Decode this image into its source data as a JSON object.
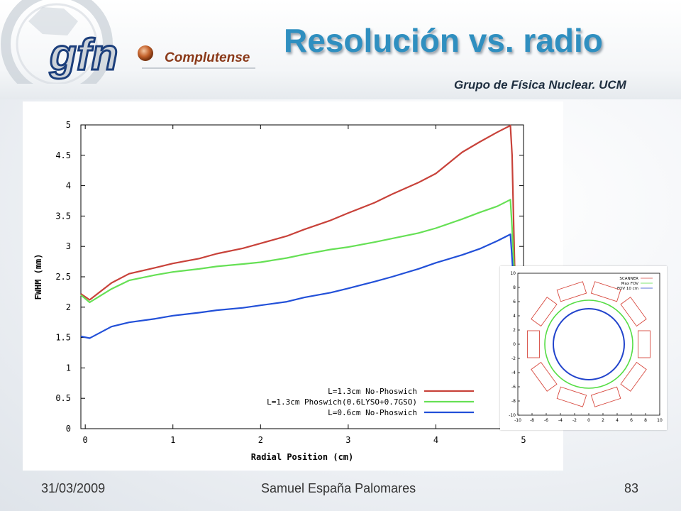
{
  "header": {
    "logo_text": "gfn",
    "logo_subtext": "Complutense",
    "title": "Resolución vs. radio",
    "subtitle": "Grupo de Física Nuclear. UCM"
  },
  "footer": {
    "date": "31/03/2009",
    "author": "Samuel España Palomares",
    "page": "83"
  },
  "colors": {
    "title": "#2f8fc0",
    "red_series": "#c8423a",
    "green_series": "#66e055",
    "blue_series": "#2250d8"
  },
  "chart_data": [
    {
      "type": "line",
      "xlabel": "Radial Position (cm)",
      "ylabel": "FWHM (mm)",
      "xlim": [
        -0.05,
        5.0
      ],
      "ylim": [
        0,
        5
      ],
      "x_ticks": [
        "0",
        "1",
        "2",
        "3",
        "4",
        "5"
      ],
      "y_ticks": [
        "0",
        "0.5",
        "1",
        "1.5",
        "2",
        "2.5",
        "3",
        "3.5",
        "4",
        "4.5",
        "5"
      ],
      "legend_position": "bottom-right",
      "series": [
        {
          "name": "L=1.3cm No-Phoswich",
          "color": "#c8423a",
          "x": [
            -0.05,
            0.05,
            0.3,
            0.5,
            0.8,
            1.0,
            1.3,
            1.5,
            1.8,
            2.0,
            2.3,
            2.5,
            2.8,
            3.0,
            3.3,
            3.5,
            3.8,
            4.0,
            4.3,
            4.5,
            4.7,
            4.85,
            4.87,
            4.9
          ],
          "y": [
            2.22,
            2.12,
            2.4,
            2.55,
            2.65,
            2.72,
            2.8,
            2.88,
            2.97,
            3.05,
            3.17,
            3.28,
            3.43,
            3.55,
            3.72,
            3.86,
            4.05,
            4.2,
            4.55,
            4.72,
            4.88,
            4.99,
            4.5,
            2.6
          ]
        },
        {
          "name": "L=1.3cm Phoswich(0.6LYSO+0.7GSO)",
          "color": "#66e055",
          "x": [
            -0.05,
            0.05,
            0.3,
            0.5,
            0.8,
            1.0,
            1.3,
            1.5,
            1.8,
            2.0,
            2.3,
            2.5,
            2.8,
            3.0,
            3.3,
            3.5,
            3.8,
            4.0,
            4.3,
            4.5,
            4.7,
            4.85,
            4.87,
            4.9
          ],
          "y": [
            2.2,
            2.08,
            2.3,
            2.44,
            2.53,
            2.58,
            2.63,
            2.67,
            2.71,
            2.74,
            2.81,
            2.87,
            2.95,
            2.99,
            3.07,
            3.13,
            3.22,
            3.3,
            3.45,
            3.56,
            3.66,
            3.77,
            3.3,
            2.4
          ]
        },
        {
          "name": "L=0.6cm No-Phoswich",
          "color": "#2250d8",
          "x": [
            -0.05,
            0.05,
            0.3,
            0.5,
            0.8,
            1.0,
            1.3,
            1.5,
            1.8,
            2.0,
            2.3,
            2.5,
            2.8,
            3.0,
            3.3,
            3.5,
            3.8,
            4.0,
            4.3,
            4.5,
            4.7,
            4.85,
            4.87,
            4.9
          ],
          "y": [
            1.52,
            1.49,
            1.68,
            1.75,
            1.81,
            1.86,
            1.91,
            1.95,
            1.99,
            2.03,
            2.09,
            2.16,
            2.24,
            2.31,
            2.42,
            2.5,
            2.63,
            2.73,
            2.86,
            2.96,
            3.09,
            3.2,
            2.8,
            2.1
          ]
        }
      ]
    },
    {
      "type": "scatter",
      "subtype": "scanner-geometry",
      "xlim": [
        -10,
        10
      ],
      "ylim": [
        -10,
        10
      ],
      "x_ticks": [
        "-10",
        "-8",
        "-6",
        "-4",
        "-2",
        "0",
        "2",
        "4",
        "6",
        "8",
        "10"
      ],
      "y_ticks": [
        "-10",
        "-8",
        "-6",
        "-4",
        "-2",
        "0",
        "2",
        "4",
        "6",
        "8",
        "10"
      ],
      "legend_position": "top-right",
      "series": [
        {
          "name": "SCANNER",
          "color": "#d84a40",
          "ring_radius": 7.8,
          "blocks": 10,
          "block_length": 3.8,
          "block_depth": 1.7
        },
        {
          "name": "Max FOV",
          "color": "#55dd44",
          "radius": 6.2
        },
        {
          "name": "FOV 10 cm",
          "color": "#2244cc",
          "radius": 5.0
        }
      ]
    }
  ]
}
